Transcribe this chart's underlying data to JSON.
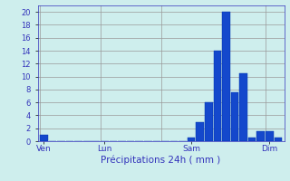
{
  "title": "",
  "xlabel": "Précipitations 24h ( mm )",
  "ylabel": "",
  "background_color": "#ceeeed",
  "bar_color": "#1448cc",
  "bar_edge_color": "#0033aa",
  "grid_color": "#999999",
  "text_color": "#3333bb",
  "ylim": [
    0,
    21
  ],
  "yticks": [
    0,
    2,
    4,
    6,
    8,
    10,
    12,
    14,
    16,
    18,
    20
  ],
  "num_bars": 28,
  "bar_values": [
    1,
    0,
    0,
    0,
    0,
    0,
    0,
    0,
    0,
    0,
    0,
    0,
    0,
    0,
    0,
    0,
    0,
    0.5,
    3,
    6,
    14,
    20,
    7.5,
    10.5,
    0.5,
    1.5,
    1.5,
    0.5
  ],
  "day_labels": [
    "Ven",
    "Lun",
    "Sam",
    "Dim"
  ],
  "day_positions": [
    0,
    7,
    17,
    26
  ],
  "day_line_positions": [
    -0.5,
    6.5,
    13.5,
    16.5,
    25.5
  ],
  "figsize": [
    3.2,
    2.0
  ],
  "dpi": 100
}
